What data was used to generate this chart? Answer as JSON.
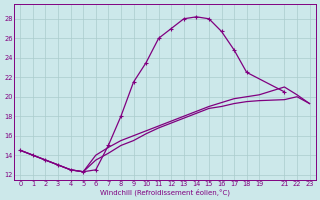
{
  "background_color": "#cce8ea",
  "line_color": "#800080",
  "grid_color": "#aacccc",
  "xlabel": "Windchill (Refroidissement éolien,°C)",
  "xlim": [
    -0.5,
    23.5
  ],
  "ylim": [
    11.5,
    29.5
  ],
  "yticks": [
    12,
    14,
    16,
    18,
    20,
    22,
    24,
    26,
    28
  ],
  "xtick_positions": [
    0,
    1,
    2,
    3,
    4,
    5,
    6,
    7,
    8,
    9,
    10,
    11,
    12,
    13,
    14,
    15,
    16,
    17,
    18,
    19,
    21,
    22,
    23
  ],
  "xtick_labels": [
    "0",
    "1",
    "2",
    "3",
    "4",
    "5",
    "6",
    "7",
    "8",
    "9",
    "10",
    "11",
    "12",
    "13",
    "14",
    "15",
    "16",
    "17",
    "18",
    "19",
    "21",
    "22",
    "23"
  ],
  "series1_x": [
    0,
    1,
    2,
    3,
    4,
    5,
    6,
    7,
    8,
    9,
    10,
    11,
    12,
    13,
    14,
    15,
    16,
    17,
    18,
    21
  ],
  "series1_y": [
    14.5,
    14.0,
    13.5,
    13.0,
    12.5,
    12.3,
    12.5,
    15.0,
    18.0,
    21.5,
    23.5,
    26.0,
    27.0,
    28.0,
    28.2,
    28.0,
    26.7,
    24.8,
    22.5,
    20.5
  ],
  "series2_x": [
    0,
    1,
    2,
    3,
    4,
    5,
    6,
    7,
    8,
    9,
    10,
    11,
    12,
    13,
    14,
    15,
    16,
    17,
    18,
    19,
    21,
    22,
    23
  ],
  "series2_y": [
    14.5,
    14.0,
    13.5,
    13.0,
    12.5,
    12.3,
    13.5,
    14.2,
    15.0,
    15.5,
    16.2,
    16.8,
    17.3,
    17.8,
    18.3,
    18.8,
    19.0,
    19.3,
    19.5,
    19.6,
    19.7,
    20.0,
    19.3
  ],
  "series3_x": [
    0,
    1,
    2,
    3,
    4,
    5,
    6,
    7,
    8,
    9,
    10,
    11,
    12,
    13,
    14,
    15,
    16,
    17,
    18,
    19,
    21,
    22,
    23
  ],
  "series3_y": [
    14.5,
    14.0,
    13.5,
    13.0,
    12.5,
    12.3,
    14.0,
    14.8,
    15.5,
    16.0,
    16.5,
    17.0,
    17.5,
    18.0,
    18.5,
    19.0,
    19.4,
    19.8,
    20.0,
    20.2,
    21.0,
    20.2,
    19.3
  ]
}
